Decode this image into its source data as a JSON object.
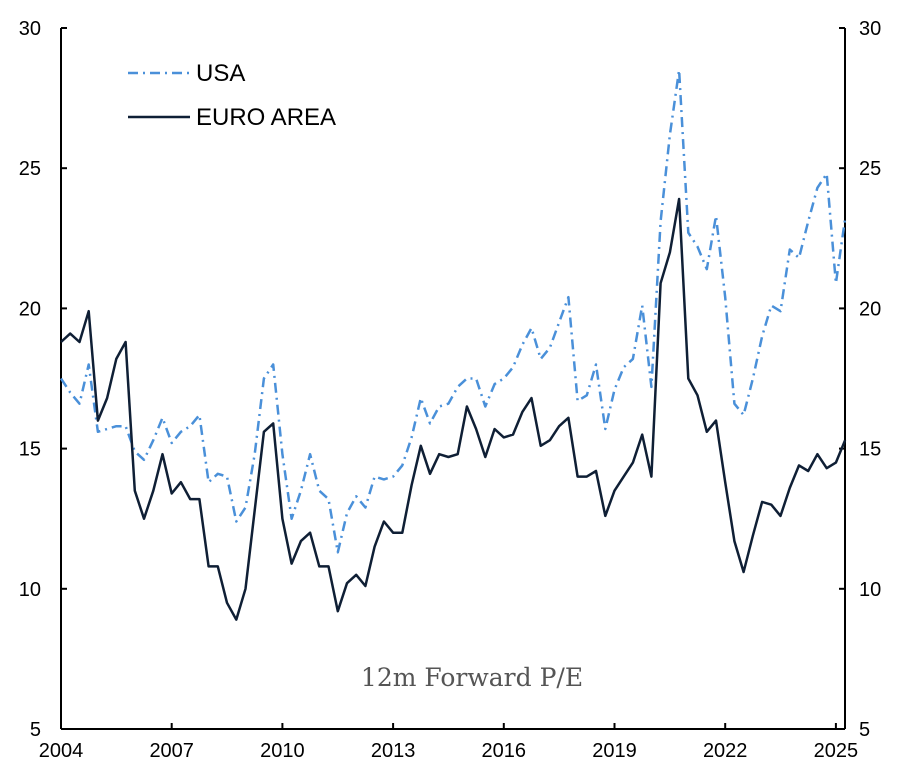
{
  "chart_data": {
    "type": "line",
    "title": "",
    "annotation": "12m Forward P/E",
    "xlabel": "",
    "ylabel": "",
    "xlim": [
      2004,
      2025.4
    ],
    "ylim": [
      5,
      30
    ],
    "x_ticks": [
      2004,
      2007,
      2010,
      2013,
      2016,
      2019,
      2022,
      2025
    ],
    "x_tick_labels": [
      "2004",
      "2007",
      "2010",
      "2013",
      "2016",
      "2019",
      "2022",
      "2025"
    ],
    "y_ticks": [
      5,
      10,
      15,
      20,
      25,
      30
    ],
    "y_tick_labels": [
      "5",
      "10",
      "15",
      "20",
      "25",
      "30"
    ],
    "y_axis_both_sides": true,
    "grid": false,
    "legend_position": "top-left",
    "x": [
      2004,
      2004.25,
      2004.5,
      2004.75,
      2005,
      2005.25,
      2005.5,
      2005.75,
      2006,
      2006.25,
      2006.5,
      2006.75,
      2007,
      2007.25,
      2007.5,
      2007.75,
      2008,
      2008.25,
      2008.5,
      2008.75,
      2009,
      2009.25,
      2009.5,
      2009.75,
      2010,
      2010.25,
      2010.5,
      2010.75,
      2011,
      2011.25,
      2011.5,
      2011.75,
      2012,
      2012.25,
      2012.5,
      2012.75,
      2013,
      2013.25,
      2013.5,
      2013.75,
      2014,
      2014.25,
      2014.5,
      2014.75,
      2015,
      2015.25,
      2015.5,
      2015.75,
      2016,
      2016.25,
      2016.5,
      2016.75,
      2017,
      2017.25,
      2017.5,
      2017.75,
      2018,
      2018.25,
      2018.5,
      2018.75,
      2019,
      2019.25,
      2019.5,
      2019.75,
      2020,
      2020.25,
      2020.5,
      2020.75,
      2021,
      2021.25,
      2021.5,
      2021.75,
      2022,
      2022.25,
      2022.5,
      2022.75,
      2023,
      2023.25,
      2023.5,
      2023.75,
      2024,
      2024.25,
      2024.5,
      2024.75,
      2025,
      2025.25
    ],
    "series": [
      {
        "name": "USA",
        "color": "#4a90d9",
        "style": "dash-dot",
        "values": [
          17.5,
          17.0,
          16.6,
          18.0,
          15.6,
          15.7,
          15.8,
          15.8,
          14.9,
          14.6,
          15.3,
          16.1,
          15.2,
          15.6,
          15.8,
          16.2,
          13.8,
          14.1,
          14.0,
          12.4,
          12.9,
          14.8,
          17.5,
          18.0,
          14.8,
          12.5,
          13.5,
          14.8,
          13.5,
          13.2,
          11.3,
          12.7,
          13.3,
          12.9,
          14.0,
          13.9,
          14.0,
          14.4,
          15.4,
          16.8,
          15.9,
          16.5,
          16.6,
          17.2,
          17.5,
          17.5,
          16.5,
          17.3,
          17.5,
          17.9,
          18.7,
          19.3,
          18.2,
          18.6,
          19.5,
          20.4,
          16.7,
          16.9,
          18.0,
          15.7,
          17.1,
          17.9,
          18.2,
          20.1,
          17.2,
          23.1,
          26.2,
          28.5,
          22.7,
          22.2,
          21.4,
          23.3,
          20.4,
          16.6,
          16.2,
          17.5,
          19.0,
          20.1,
          19.9,
          22.1,
          21.8,
          23.1,
          24.3,
          24.8,
          20.9,
          23.2
        ]
      },
      {
        "name": "EURO AREA",
        "color": "#0f1f35",
        "style": "solid",
        "values": [
          18.8,
          19.1,
          18.8,
          19.9,
          16.0,
          16.8,
          18.2,
          18.8,
          13.5,
          12.5,
          13.5,
          14.8,
          13.4,
          13.8,
          13.2,
          13.2,
          10.8,
          10.8,
          9.5,
          8.9,
          10.0,
          12.8,
          15.6,
          15.9,
          12.5,
          10.9,
          11.7,
          12.0,
          10.8,
          10.8,
          9.2,
          10.2,
          10.5,
          10.1,
          11.5,
          12.4,
          12.0,
          12.0,
          13.7,
          15.1,
          14.1,
          14.8,
          14.7,
          14.8,
          16.5,
          15.7,
          14.7,
          15.7,
          15.4,
          15.5,
          16.3,
          16.8,
          15.1,
          15.3,
          15.8,
          16.1,
          14.0,
          14.0,
          14.2,
          12.6,
          13.5,
          14.0,
          14.5,
          15.5,
          14.0,
          20.9,
          22.0,
          23.9,
          17.5,
          16.9,
          15.6,
          16.0,
          13.8,
          11.7,
          10.6,
          11.9,
          13.1,
          13.0,
          12.6,
          13.6,
          14.4,
          14.2,
          14.8,
          14.3,
          14.5,
          15.3
        ]
      }
    ]
  }
}
